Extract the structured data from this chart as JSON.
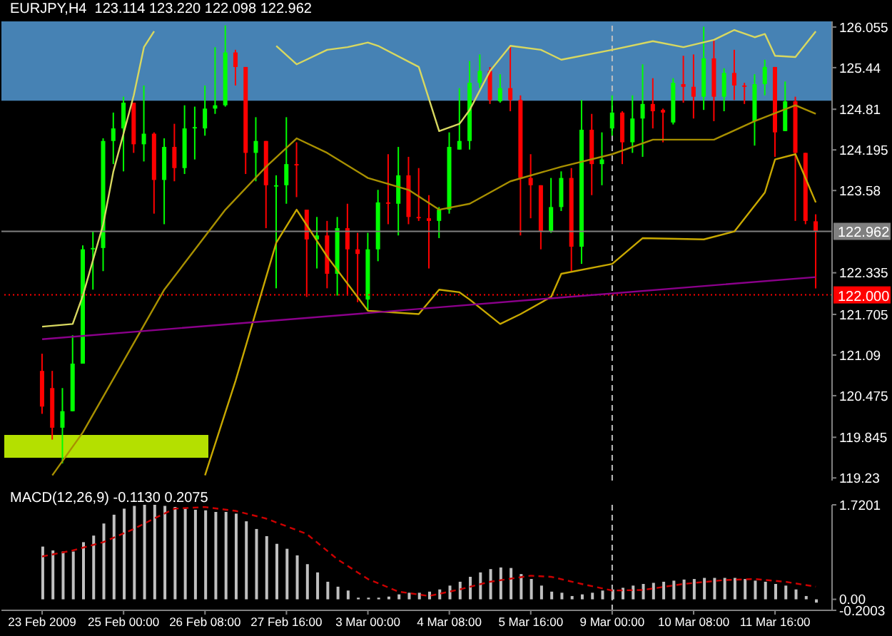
{
  "chart_data": [
    {
      "type": "candlestick",
      "title": "EURJPY,H4  123.114 123.220 122.098 122.962",
      "categories": [
        "23 Feb 2009",
        null,
        null,
        null,
        null,
        null,
        null,
        null,
        "25 Feb 00:00",
        null,
        null,
        null,
        null,
        null,
        null,
        null,
        "26 Feb 08:00",
        null,
        null,
        null,
        null,
        null,
        null,
        null,
        "27 Feb 16:00",
        null,
        null,
        null,
        null,
        null,
        null,
        null,
        "3 Mar 00:00",
        null,
        null,
        null,
        null,
        null,
        null,
        null,
        "4 Mar 08:00",
        null,
        null,
        null,
        null,
        null,
        null,
        null,
        "5 Mar 16:00",
        null,
        null,
        null,
        null,
        null,
        null,
        null,
        "9 Mar 00:00",
        null,
        null,
        null,
        null,
        null,
        null,
        null,
        "10 Mar 08:00",
        null,
        null,
        null,
        null,
        null,
        null,
        null,
        "11 Mar 16:00",
        null,
        null,
        null,
        null
      ],
      "ohlc": [
        [
          120.85,
          121.11,
          120.2,
          120.31
        ],
        [
          120.59,
          120.85,
          119.81,
          119.99
        ],
        [
          119.99,
          120.59,
          119.45,
          120.24
        ],
        [
          120.24,
          121.39,
          120.24,
          120.96
        ],
        [
          120.96,
          122.75,
          120.96,
          122.69
        ],
        [
          122.69,
          122.96,
          122.08,
          122.71
        ],
        [
          122.71,
          124.37,
          122.36,
          124.33
        ],
        [
          124.33,
          124.76,
          123.98,
          124.52
        ],
        [
          124.52,
          125.0,
          123.87,
          124.91
        ],
        [
          124.91,
          124.91,
          124.15,
          124.28
        ],
        [
          124.28,
          125.17,
          124.02,
          124.44
        ],
        [
          124.44,
          124.46,
          123.23,
          123.74
        ],
        [
          123.74,
          124.37,
          123.07,
          124.24
        ],
        [
          124.24,
          124.59,
          123.72,
          123.92
        ],
        [
          123.92,
          124.87,
          123.83,
          124.52
        ],
        [
          124.52,
          124.85,
          124.05,
          124.54
        ],
        [
          124.52,
          125.17,
          124.41,
          124.82
        ],
        [
          124.82,
          125.75,
          124.74,
          124.87
        ],
        [
          124.87,
          126.08,
          124.85,
          125.67
        ],
        [
          125.67,
          125.71,
          125.17,
          125.45
        ],
        [
          125.45,
          125.45,
          123.83,
          124.15
        ],
        [
          124.15,
          124.69,
          123.72,
          124.33
        ],
        [
          124.33,
          124.33,
          123.01,
          123.66
        ],
        [
          123.64,
          123.81,
          122.1,
          123.66
        ],
        [
          123.66,
          124.69,
          123.38,
          123.98
        ],
        [
          123.98,
          124.31,
          123.48,
          123.96
        ],
        [
          123.29,
          123.29,
          121.97,
          122.84
        ],
        [
          122.84,
          123.18,
          122.4,
          122.9
        ],
        [
          122.9,
          123.12,
          122.1,
          122.32
        ],
        [
          122.32,
          123.18,
          121.99,
          123.01
        ],
        [
          123.01,
          123.38,
          121.99,
          122.69
        ],
        [
          122.69,
          122.94,
          121.89,
          122.62
        ],
        [
          121.93,
          122.94,
          121.76,
          122.69
        ],
        [
          122.69,
          123.59,
          122.51,
          123.4
        ],
        [
          123.4,
          124.13,
          123.07,
          123.38
        ],
        [
          123.38,
          124.24,
          122.9,
          123.81
        ],
        [
          123.81,
          124.09,
          123.07,
          123.18
        ],
        [
          123.18,
          123.92,
          123.12,
          123.16
        ],
        [
          123.16,
          123.51,
          122.4,
          123.12
        ],
        [
          123.12,
          123.33,
          122.86,
          123.29
        ],
        [
          123.29,
          124.46,
          123.23,
          124.24
        ],
        [
          124.2,
          125.13,
          124.2,
          124.33
        ],
        [
          124.33,
          125.54,
          124.2,
          125.21
        ],
        [
          125.21,
          125.64,
          125.13,
          125.39
        ],
        [
          125.39,
          125.45,
          124.89,
          124.95
        ],
        [
          124.93,
          125.34,
          124.91,
          125.13
        ],
        [
          125.13,
          125.77,
          124.78,
          124.95
        ],
        [
          124.95,
          125.02,
          122.9,
          123.77
        ],
        [
          123.77,
          124.13,
          123.16,
          123.66
        ],
        [
          123.66,
          123.66,
          122.69,
          122.96
        ],
        [
          122.96,
          123.77,
          122.94,
          123.33
        ],
        [
          123.33,
          123.87,
          123.27,
          123.77
        ],
        [
          123.77,
          123.92,
          122.36,
          122.73
        ],
        [
          122.73,
          124.95,
          122.47,
          124.5
        ],
        [
          124.5,
          124.74,
          123.51,
          123.98
        ],
        [
          123.98,
          124.46,
          123.66,
          124.05
        ],
        [
          124.52,
          125.02,
          124.41,
          124.76
        ],
        [
          124.76,
          124.78,
          123.98,
          124.31
        ],
        [
          124.31,
          125.02,
          124.15,
          124.67
        ],
        [
          124.67,
          125.49,
          124.09,
          124.89
        ],
        [
          124.89,
          125.28,
          124.52,
          124.78
        ],
        [
          124.8,
          124.82,
          124.31,
          124.76
        ],
        [
          124.61,
          125.28,
          124.58,
          125.21
        ],
        [
          125.19,
          125.62,
          124.91,
          125.15
        ],
        [
          125.15,
          125.64,
          124.67,
          125.0
        ],
        [
          125.0,
          126.06,
          124.8,
          125.58
        ],
        [
          125.58,
          125.86,
          124.63,
          125.0
        ],
        [
          125.0,
          125.43,
          124.78,
          125.36
        ],
        [
          125.36,
          125.71,
          124.95,
          125.17
        ],
        [
          125.17,
          125.21,
          124.89,
          125.15
        ],
        [
          124.63,
          125.34,
          124.26,
          125.19
        ],
        [
          125.19,
          125.56,
          125.02,
          125.45
        ],
        [
          125.45,
          125.45,
          124.09,
          124.46
        ],
        [
          124.48,
          125.23,
          124.48,
          124.93
        ],
        [
          124.93,
          125.0,
          123.12,
          124.15
        ],
        [
          124.15,
          124.15,
          123.07,
          123.12
        ],
        [
          123.114,
          123.22,
          122.098,
          122.962
        ]
      ],
      "series": [
        {
          "type": "line",
          "color": "#d8d860",
          "values": [
            121.52,
            null,
            null,
            121.56,
            121.99,
            null,
            123.07,
            123.87,
            null,
            125.02,
            125.75,
            125.99,
            null,
            null,
            null,
            null,
            null,
            null,
            null,
            null,
            null,
            null,
            null,
            null,
            null,
            null,
            null,
            null,
            null,
            null,
            null,
            null,
            null,
            null,
            null,
            null,
            null,
            null,
            null,
            null,
            null,
            null,
            null,
            null,
            null,
            null,
            null,
            null,
            null,
            null,
            null,
            null,
            null,
            null,
            null,
            null,
            null,
            null,
            null,
            null,
            null,
            null,
            null,
            null,
            null,
            null,
            null,
            null,
            null,
            null,
            null,
            null,
            null,
            null,
            null,
            null,
            null
          ]
        },
        {
          "type": "line",
          "color": "#d8d860",
          "values": [
            null,
            null,
            null,
            null,
            null,
            null,
            null,
            null,
            null,
            null,
            null,
            null,
            null,
            null,
            null,
            null,
            null,
            null,
            null,
            null,
            null,
            null,
            null,
            125.77,
            null,
            125.49,
            null,
            null,
            125.71,
            null,
            125.75,
            null,
            125.82,
            125.77,
            null,
            null,
            null,
            125.45,
            null,
            124.48,
            null,
            124.59,
            124.8,
            null,
            125.39,
            null,
            125.77,
            null,
            null,
            125.71,
            null,
            125.56,
            null,
            null,
            null,
            null,
            125.71,
            null,
            null,
            null,
            125.84,
            null,
            null,
            125.75,
            null,
            null,
            125.86,
            null,
            126.01,
            null,
            125.9,
            125.95,
            125.62,
            null,
            125.6,
            null,
            125.99
          ]
        },
        {
          "type": "line",
          "color": "#a89000",
          "values": [
            null,
            119.27,
            null,
            null,
            119.92,
            null,
            null,
            null,
            null,
            null,
            null,
            null,
            122.08,
            null,
            null,
            null,
            null,
            null,
            123.29,
            null,
            null,
            null,
            123.94,
            null,
            null,
            124.37,
            null,
            null,
            124.15,
            null,
            null,
            null,
            123.77,
            null,
            null,
            null,
            123.59,
            null,
            null,
            123.29,
            null,
            null,
            123.38,
            null,
            123.55,
            null,
            123.72,
            null,
            null,
            null,
            null,
            123.94,
            null,
            null,
            null,
            null,
            124.13,
            null,
            null,
            null,
            124.35,
            null,
            null,
            null,
            null,
            null,
            124.35,
            null,
            null,
            null,
            124.63,
            null,
            null,
            null,
            124.87,
            null,
            124.74
          ]
        },
        {
          "type": "line",
          "color": "#c8a800",
          "values": [
            null,
            null,
            null,
            null,
            null,
            null,
            null,
            null,
            null,
            null,
            null,
            null,
            null,
            null,
            null,
            null,
            119.27,
            null,
            null,
            120.7,
            null,
            null,
            null,
            122.79,
            null,
            123.29,
            null,
            null,
            122.58,
            null,
            null,
            null,
            121.76,
            null,
            null,
            null,
            null,
            121.71,
            null,
            122.08,
            null,
            122.04,
            121.93,
            null,
            null,
            121.56,
            null,
            121.71,
            null,
            null,
            121.97,
            122.32,
            null,
            null,
            null,
            null,
            122.47,
            null,
            null,
            122.86,
            null,
            null,
            null,
            null,
            null,
            122.84,
            null,
            null,
            122.96,
            null,
            null,
            123.55,
            124.05,
            null,
            124.13,
            null,
            123.4
          ]
        },
        {
          "type": "line",
          "color": "#8b008b",
          "values": [
            121.33,
            null,
            null,
            null,
            null,
            null,
            null,
            null,
            null,
            null,
            null,
            null,
            null,
            null,
            null,
            null,
            null,
            null,
            null,
            null,
            null,
            null,
            null,
            null,
            null,
            null,
            null,
            null,
            null,
            null,
            null,
            null,
            null,
            null,
            null,
            null,
            null,
            null,
            121.8,
            null,
            null,
            null,
            null,
            null,
            null,
            null,
            null,
            null,
            null,
            null,
            null,
            null,
            null,
            null,
            null,
            null,
            null,
            null,
            null,
            null,
            null,
            null,
            null,
            null,
            null,
            null,
            null,
            null,
            null,
            null,
            null,
            null,
            null,
            null,
            null,
            null,
            122.27
          ]
        }
      ],
      "ylim": [
        119.19,
        126.14
      ],
      "yticks": [
        126.055,
        125.44,
        124.81,
        124.195,
        123.58,
        122.335,
        121.705,
        121.09,
        120.475,
        119.845,
        119.23
      ],
      "tick_labels": "y",
      "ref_lines": [
        {
          "axis": "y",
          "value": 122.962,
          "label": "122.962",
          "color": "#808080"
        },
        {
          "axis": "y",
          "value": 122.0,
          "label": "122.000",
          "color": "#ff0000",
          "line_style": "dotted"
        },
        {
          "axis": "x",
          "value": "9 Mar 00:00",
          "color": "#c0c0c0",
          "line_style": "dashed"
        }
      ],
      "bands": [
        {
          "axis": "y",
          "from": 124.94,
          "to": 126.14,
          "color": "#4682b4"
        }
      ]
    },
    {
      "type": "bar",
      "title": "MACD(12,26,9) -0.1130 0.2075",
      "categories": [
        "23 Feb 2009",
        null,
        null,
        null,
        null,
        null,
        null,
        null,
        "25 Feb 00:00",
        null,
        null,
        null,
        null,
        null,
        null,
        null,
        "26 Feb 08:00",
        null,
        null,
        null,
        null,
        null,
        null,
        null,
        "27 Feb 16:00",
        null,
        null,
        null,
        null,
        null,
        null,
        null,
        "3 Mar 00:00",
        null,
        null,
        null,
        null,
        null,
        null,
        null,
        "4 Mar 08:00",
        null,
        null,
        null,
        null,
        null,
        null,
        null,
        "5 Mar 16:00",
        null,
        null,
        null,
        null,
        null,
        null,
        null,
        "9 Mar 00:00",
        null,
        null,
        null,
        null,
        null,
        null,
        null,
        "10 Mar 08:00",
        null,
        null,
        null,
        null,
        null,
        null,
        null,
        "11 Mar 16:00",
        null,
        null,
        null,
        null
      ],
      "series": [
        {
          "type": "bar",
          "color": "#c0c0c0",
          "values": [
            0.96,
            0.89,
            0.87,
            0.87,
            1.04,
            1.16,
            1.38,
            1.54,
            1.65,
            1.7,
            1.72,
            1.72,
            1.7,
            1.68,
            1.65,
            1.63,
            1.62,
            1.59,
            1.59,
            1.56,
            1.42,
            1.28,
            1.15,
            1.01,
            0.92,
            0.8,
            0.64,
            0.49,
            0.32,
            0.23,
            0.16,
            0.03,
            0.03,
            0.03,
            0.05,
            0.09,
            0.12,
            0.12,
            0.14,
            0.18,
            0.25,
            0.32,
            0.41,
            0.49,
            0.55,
            0.58,
            0.57,
            0.46,
            0.37,
            0.25,
            0.14,
            0.12,
            0.06,
            0.09,
            0.12,
            0.16,
            0.18,
            0.21,
            0.25,
            0.28,
            0.3,
            0.32,
            0.34,
            0.36,
            0.37,
            0.39,
            0.39,
            0.39,
            0.39,
            0.37,
            0.34,
            0.32,
            0.28,
            0.25,
            0.18,
            0.06,
            -0.06
          ]
        },
        {
          "type": "line",
          "color": "#cc0000",
          "line_style": "dashed",
          "values": [
            0.78,
            null,
            null,
            0.89,
            null,
            null,
            1.04,
            null,
            null,
            1.28,
            null,
            1.47,
            null,
            1.65,
            null,
            null,
            1.68,
            null,
            null,
            1.61,
            null,
            null,
            1.47,
            null,
            null,
            null,
            1.19,
            null,
            null,
            0.73,
            null,
            null,
            0.37,
            null,
            null,
            0.14,
            null,
            null,
            0.06,
            null,
            null,
            0.18,
            null,
            null,
            0.32,
            null,
            null,
            null,
            0.43,
            null,
            0.41,
            null,
            null,
            0.28,
            null,
            null,
            0.16,
            null,
            null,
            0.17,
            null,
            null,
            null,
            0.28,
            null,
            null,
            null,
            0.35,
            null,
            null,
            0.37,
            null,
            null,
            0.32,
            null,
            null,
            0.23
          ]
        }
      ],
      "ylim": [
        -0.2003,
        1.7201
      ],
      "yticks": [
        1.7201,
        {
          "value": 0,
          "label": "0.00"
        },
        -0.2003
      ],
      "ref_lines": [
        {
          "axis": "x",
          "value": "9 Mar 00:00",
          "color": "#c0c0c0",
          "line_style": "dashed"
        }
      ]
    }
  ]
}
